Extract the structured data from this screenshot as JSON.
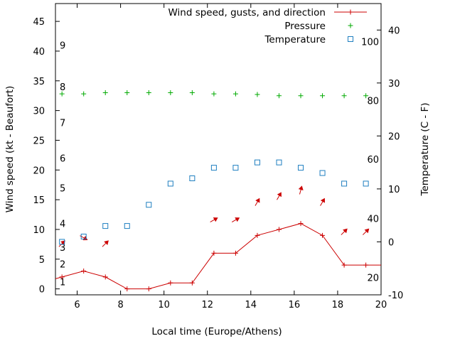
{
  "chart_data": {
    "type": "line",
    "title": "",
    "xlabel": "Local time (Europe/Athens)",
    "ylabel": "Wind speed (kt - Beaufort)",
    "y2label": "Temperature (C - F)",
    "xlim": [
      5,
      20
    ],
    "ylim": [
      -1,
      48
    ],
    "y2lim": [
      -10,
      45
    ],
    "x_ticks": [
      6,
      8,
      10,
      12,
      14,
      16,
      18,
      20
    ],
    "y_ticks": [
      0,
      5,
      10,
      15,
      20,
      25,
      30,
      35,
      40,
      45
    ],
    "y2_ticks": [
      -10,
      0,
      10,
      20,
      30,
      40
    ],
    "beaufort_labels": [
      {
        "label": "1",
        "kt": 1.2
      },
      {
        "label": "2",
        "kt": 4.2
      },
      {
        "label": "3",
        "kt": 7.0
      },
      {
        "label": "4",
        "kt": 11.0
      },
      {
        "label": "5",
        "kt": 17.0
      },
      {
        "label": "6",
        "kt": 22.0
      },
      {
        "label": "7",
        "kt": 28.0
      },
      {
        "label": "8",
        "kt": 34.0
      },
      {
        "label": "9",
        "kt": 41.0
      }
    ],
    "fahrenheit_labels": [
      {
        "label": "20",
        "temp_c": -6.7
      },
      {
        "label": "40",
        "temp_c": 4.4
      },
      {
        "label": "60",
        "temp_c": 15.6
      },
      {
        "label": "80",
        "temp_c": 26.7
      },
      {
        "label": "100",
        "temp_c": 37.8
      }
    ],
    "legend": {
      "placement": "top-right",
      "entries": [
        {
          "label": "Wind speed, gusts, and direction",
          "color": "#cc0000",
          "marker": "line-plus"
        },
        {
          "label": "Pressure",
          "color": "#00aa00",
          "marker": "plus"
        },
        {
          "label": "Temperature",
          "color": "#1f7fc0",
          "marker": "square"
        }
      ]
    },
    "series": [
      {
        "name": "Wind speed, gusts, and direction",
        "color": "#cc0000",
        "x": [
          5,
          5.3,
          6.3,
          7.3,
          8.3,
          9.3,
          10.3,
          11.3,
          12.3,
          13.3,
          14.3,
          15.3,
          16.3,
          17.3,
          18.3,
          19.3,
          20
        ],
        "values": [
          1.7,
          2,
          3,
          2,
          0,
          0,
          1,
          1,
          6,
          6,
          9,
          10,
          11,
          9,
          4,
          4,
          4
        ],
        "direction_deg": [
          null,
          45,
          120,
          45,
          null,
          null,
          null,
          null,
          60,
          60,
          30,
          30,
          15,
          30,
          45,
          45,
          null
        ]
      },
      {
        "name": "Pressure",
        "color": "#00aa00",
        "x": [
          5.3,
          6.3,
          7.3,
          8.3,
          9.3,
          10.3,
          11.3,
          12.3,
          13.3,
          14.3,
          15.3,
          16.3,
          17.3,
          18.3,
          19.3
        ],
        "values": [
          32.8,
          32.8,
          33.0,
          33.0,
          33.0,
          33.0,
          33.0,
          32.8,
          32.8,
          32.7,
          32.5,
          32.5,
          32.5,
          32.5,
          32.5
        ]
      },
      {
        "name": "Temperature",
        "color": "#1f7fc0",
        "x": [
          5.3,
          6.3,
          7.3,
          8.3,
          9.3,
          10.3,
          11.3,
          12.3,
          13.3,
          14.3,
          15.3,
          16.3,
          17.3,
          18.3,
          19.3
        ],
        "values": [
          0,
          1,
          3,
          3,
          7,
          11,
          12,
          14,
          14,
          15,
          15,
          14,
          13,
          11,
          11
        ]
      }
    ]
  }
}
